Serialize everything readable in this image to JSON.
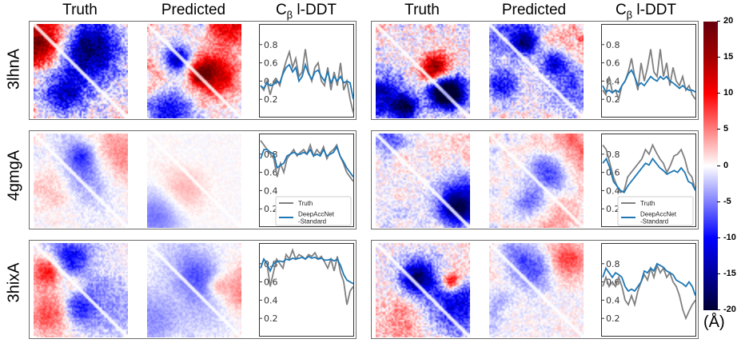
{
  "column_titles": {
    "truth": "Truth",
    "predicted": "Predicted",
    "lddt_prefix": "C",
    "lddt_sub": "β",
    "lddt_suffix": " l-DDT"
  },
  "rows": [
    {
      "label": "3lhnA"
    },
    {
      "label": "4gmgA"
    },
    {
      "label": "3hixA"
    }
  ],
  "colorbar": {
    "ticks": [
      "20",
      "15",
      "10",
      "5",
      "0",
      "-5",
      "-10",
      "-15",
      "-20"
    ],
    "unit": "(Å)",
    "range": [
      -20,
      20
    ],
    "colormap": "seismic",
    "colors": {
      "max": "#67000d",
      "pos": "#ff0000",
      "zero": "#ffffff",
      "neg": "#0000ff",
      "min": "#000033"
    }
  },
  "legend": {
    "truth": "Truth",
    "model_line1": "DeepAccNet",
    "model_line2": "-Standard"
  },
  "colors": {
    "truth_line": "#808080",
    "model_line": "#1f77b4"
  },
  "chart_data": [
    {
      "type": "line",
      "title": "Cβ l-DDT",
      "protein": "3lhnA",
      "panel": "left",
      "ylim": [
        0,
        1
      ],
      "yticks": [
        "0.2",
        "0.4",
        "0.6",
        "0.8"
      ],
      "legend": false,
      "series": [
        {
          "name": "Truth",
          "values": [
            0.35,
            0.3,
            0.4,
            0.25,
            0.38,
            0.42,
            0.35,
            0.5,
            0.62,
            0.72,
            0.55,
            0.65,
            0.45,
            0.5,
            0.75,
            0.5,
            0.4,
            0.55,
            0.6,
            0.4,
            0.35,
            0.55,
            0.3,
            0.5,
            0.35,
            0.6,
            0.3,
            0.4,
            0.2,
            0.05
          ]
        },
        {
          "name": "DeepAccNet-Standard",
          "values": [
            0.35,
            0.32,
            0.38,
            0.35,
            0.36,
            0.4,
            0.38,
            0.48,
            0.55,
            0.58,
            0.5,
            0.55,
            0.4,
            0.45,
            0.58,
            0.48,
            0.42,
            0.5,
            0.52,
            0.45,
            0.4,
            0.5,
            0.38,
            0.45,
            0.4,
            0.45,
            0.38,
            0.4,
            0.38,
            0.2
          ]
        }
      ]
    },
    {
      "type": "line",
      "title": "Cβ l-DDT",
      "protein": "3lhnA",
      "panel": "right",
      "ylim": [
        0,
        1
      ],
      "yticks": [
        "0.2",
        "0.4",
        "0.6",
        "0.8"
      ],
      "legend": false,
      "series": [
        {
          "name": "Truth",
          "values": [
            0.3,
            0.25,
            0.45,
            0.28,
            0.3,
            0.2,
            0.35,
            0.4,
            0.5,
            0.65,
            0.45,
            0.3,
            0.6,
            0.4,
            0.55,
            0.75,
            0.5,
            0.45,
            0.75,
            0.45,
            0.6,
            0.35,
            0.55,
            0.4,
            0.35,
            0.45,
            0.3,
            0.35,
            0.25,
            0.2
          ]
        },
        {
          "name": "DeepAccNet-Standard",
          "values": [
            0.35,
            0.28,
            0.3,
            0.27,
            0.3,
            0.28,
            0.35,
            0.4,
            0.48,
            0.52,
            0.45,
            0.35,
            0.38,
            0.35,
            0.4,
            0.45,
            0.42,
            0.4,
            0.45,
            0.42,
            0.45,
            0.4,
            0.38,
            0.35,
            0.32,
            0.35,
            0.32,
            0.3,
            0.3,
            0.28
          ]
        }
      ]
    },
    {
      "type": "line",
      "title": "Cβ l-DDT",
      "protein": "4gmgA",
      "panel": "left",
      "ylim": [
        0,
        1
      ],
      "yticks": [
        "0.2",
        "0.4",
        "0.6",
        "0.8"
      ],
      "legend": true,
      "series": [
        {
          "name": "Truth",
          "values": [
            0.95,
            0.9,
            0.85,
            0.8,
            0.75,
            0.55,
            0.7,
            0.6,
            0.75,
            0.8,
            0.85,
            0.78,
            0.82,
            0.85,
            0.8,
            0.9,
            0.78,
            0.85,
            0.8,
            0.88,
            0.75,
            0.82,
            0.85,
            0.9,
            0.78,
            0.7,
            0.6,
            0.55,
            0.5
          ]
        },
        {
          "name": "DeepAccNet-Standard",
          "values": [
            0.75,
            0.85,
            0.85,
            0.82,
            0.8,
            0.65,
            0.68,
            0.7,
            0.78,
            0.8,
            0.82,
            0.8,
            0.8,
            0.82,
            0.8,
            0.85,
            0.78,
            0.8,
            0.78,
            0.85,
            0.78,
            0.8,
            0.82,
            0.88,
            0.78,
            0.72,
            0.65,
            0.6,
            0.55
          ]
        }
      ]
    },
    {
      "type": "line",
      "title": "Cβ l-DDT",
      "protein": "4gmgA",
      "panel": "right",
      "ylim": [
        0,
        1
      ],
      "yticks": [
        "0.2",
        "0.4",
        "0.6",
        "0.8"
      ],
      "legend": true,
      "series": [
        {
          "name": "Truth",
          "values": [
            0.9,
            0.85,
            0.7,
            0.55,
            0.45,
            0.38,
            0.4,
            0.55,
            0.6,
            0.65,
            0.7,
            0.75,
            0.85,
            0.8,
            0.9,
            0.82,
            0.75,
            0.7,
            0.6,
            0.68,
            0.78,
            0.8,
            0.85,
            0.75,
            0.6,
            0.55,
            0.4
          ]
        },
        {
          "name": "DeepAccNet-Standard",
          "values": [
            0.7,
            0.75,
            0.65,
            0.5,
            0.45,
            0.4,
            0.38,
            0.45,
            0.5,
            0.55,
            0.6,
            0.65,
            0.7,
            0.68,
            0.75,
            0.7,
            0.65,
            0.62,
            0.58,
            0.6,
            0.62,
            0.6,
            0.65,
            0.6,
            0.5,
            0.48,
            0.4
          ]
        }
      ]
    },
    {
      "type": "line",
      "title": "Cβ l-DDT",
      "protein": "3hixA",
      "panel": "left",
      "ylim": [
        0,
        1
      ],
      "yticks": [
        "0.2",
        "0.4",
        "0.6",
        "0.8"
      ],
      "legend": false,
      "series": [
        {
          "name": "Truth",
          "values": [
            0.75,
            0.85,
            0.8,
            0.55,
            0.7,
            0.85,
            0.8,
            0.75,
            0.9,
            0.85,
            0.95,
            0.85,
            0.9,
            0.88,
            0.85,
            0.9,
            0.88,
            0.92,
            0.85,
            0.88,
            0.82,
            0.75,
            0.85,
            0.72,
            0.88,
            0.7,
            0.6,
            0.35,
            0.5,
            0.55
          ]
        },
        {
          "name": "DeepAccNet-Standard",
          "values": [
            0.75,
            0.85,
            0.8,
            0.72,
            0.8,
            0.82,
            0.83,
            0.82,
            0.85,
            0.84,
            0.86,
            0.85,
            0.86,
            0.87,
            0.85,
            0.88,
            0.86,
            0.87,
            0.85,
            0.86,
            0.84,
            0.84,
            0.85,
            0.83,
            0.85,
            0.78,
            0.68,
            0.62,
            0.6,
            0.58
          ]
        }
      ]
    },
    {
      "type": "line",
      "title": "Cβ l-DDT",
      "protein": "3hixA",
      "panel": "right",
      "ylim": [
        0,
        1
      ],
      "yticks": [
        "0.2",
        "0.4",
        "0.6",
        "0.8"
      ],
      "legend": false,
      "series": [
        {
          "name": "Truth",
          "values": [
            0.55,
            0.65,
            0.55,
            0.6,
            0.55,
            0.65,
            0.55,
            0.4,
            0.35,
            0.45,
            0.35,
            0.5,
            0.6,
            0.68,
            0.62,
            0.75,
            0.65,
            0.78,
            0.7,
            0.75,
            0.65,
            0.7,
            0.6,
            0.55,
            0.45,
            0.3,
            0.2,
            0.28,
            0.35,
            0.4
          ]
        },
        {
          "name": "DeepAccNet-Standard",
          "values": [
            0.65,
            0.75,
            0.7,
            0.65,
            0.7,
            0.68,
            0.65,
            0.55,
            0.5,
            0.52,
            0.5,
            0.55,
            0.6,
            0.72,
            0.7,
            0.75,
            0.72,
            0.8,
            0.78,
            0.76,
            0.72,
            0.7,
            0.68,
            0.62,
            0.6,
            0.58,
            0.55,
            0.6,
            0.55,
            0.45
          ]
        }
      ]
    }
  ]
}
